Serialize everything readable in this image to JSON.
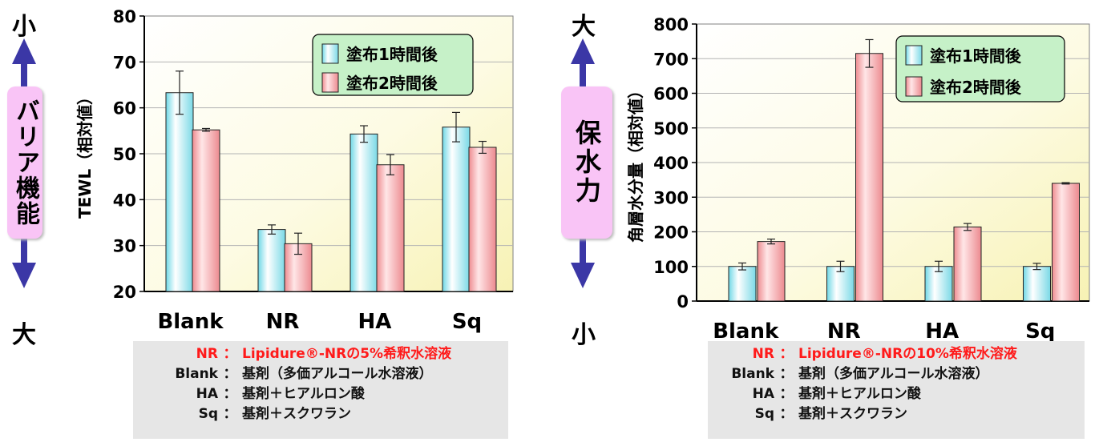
{
  "chart_data": [
    {
      "type": "bar",
      "ylabel": "TEWL（相対値）",
      "categories": [
        "Blank",
        "NR",
        "HA",
        "Sq"
      ],
      "ylim": [
        20,
        80
      ],
      "yticks": [
        "20",
        "30",
        "40",
        "50",
        "60",
        "70",
        "80"
      ],
      "grid": true,
      "legend_position": "top-right",
      "series": [
        {
          "name": "塗布1時間後",
          "values": [
            63.3,
            33.5,
            54.3,
            55.8
          ],
          "errors": [
            4.7,
            1.0,
            1.8,
            3.2
          ]
        },
        {
          "name": "塗布2時間後",
          "values": [
            55.2,
            30.4,
            47.6,
            51.4
          ],
          "errors": [
            0.3,
            2.3,
            2.2,
            1.3
          ]
        }
      ],
      "side_label": {
        "top": "小",
        "middle": "バリア機能",
        "bottom": "大"
      },
      "colors": {
        "series1": "#8fe6f0",
        "series2": "#f39a9e",
        "highlight": "#ff1a1a",
        "legend_bg": "#c6f1c8",
        "side_label_bg": "#f9c4f6",
        "arrow": "#3b37a6"
      },
      "notes": [
        {
          "key": "NR",
          "sep": "：",
          "text": "Lipidure®-NRの5%希釈水溶液",
          "highlight": true
        },
        {
          "key": "Blank",
          "sep": "：",
          "text": "基剤（多価アルコール水溶液）",
          "highlight": false
        },
        {
          "key": "HA",
          "sep": "：",
          "text": "基剤＋ヒアルロン酸",
          "highlight": false
        },
        {
          "key": "Sq",
          "sep": "：",
          "text": "基剤＋スクワラン",
          "highlight": false
        }
      ]
    },
    {
      "type": "bar",
      "ylabel": "角層水分量（相対値）",
      "categories": [
        "Blank",
        "NR",
        "HA",
        "Sq"
      ],
      "ylim": [
        0,
        800
      ],
      "yticks": [
        "0",
        "100",
        "200",
        "300",
        "400",
        "500",
        "600",
        "700",
        "800"
      ],
      "grid": true,
      "legend_position": "top-right",
      "series": [
        {
          "name": "塗布1時間後",
          "values": [
            100,
            100,
            100,
            100
          ],
          "errors": [
            10,
            15,
            15,
            9
          ]
        },
        {
          "name": "塗布2時間後",
          "values": [
            172,
            715,
            214,
            340
          ],
          "errors": [
            7,
            40,
            10,
            2
          ]
        }
      ],
      "side_label": {
        "top": "大",
        "middle": "保水力",
        "bottom": "小"
      },
      "colors": {
        "series1": "#8fe6f0",
        "series2": "#f39a9e",
        "highlight": "#ff1a1a",
        "legend_bg": "#c6f1c8",
        "side_label_bg": "#f9c4f6",
        "arrow": "#3b37a6"
      },
      "notes": [
        {
          "key": "NR",
          "sep": "：",
          "text": "Lipidure®-NRの10%希釈水溶液",
          "highlight": true
        },
        {
          "key": "Blank",
          "sep": "：",
          "text": "基剤（多価アルコール水溶液）",
          "highlight": false
        },
        {
          "key": "HA",
          "sep": "：",
          "text": "基剤＋ヒアルロン酸",
          "highlight": false
        },
        {
          "key": "Sq",
          "sep": "：",
          "text": "基剤＋スクワラン",
          "highlight": false
        }
      ]
    }
  ]
}
